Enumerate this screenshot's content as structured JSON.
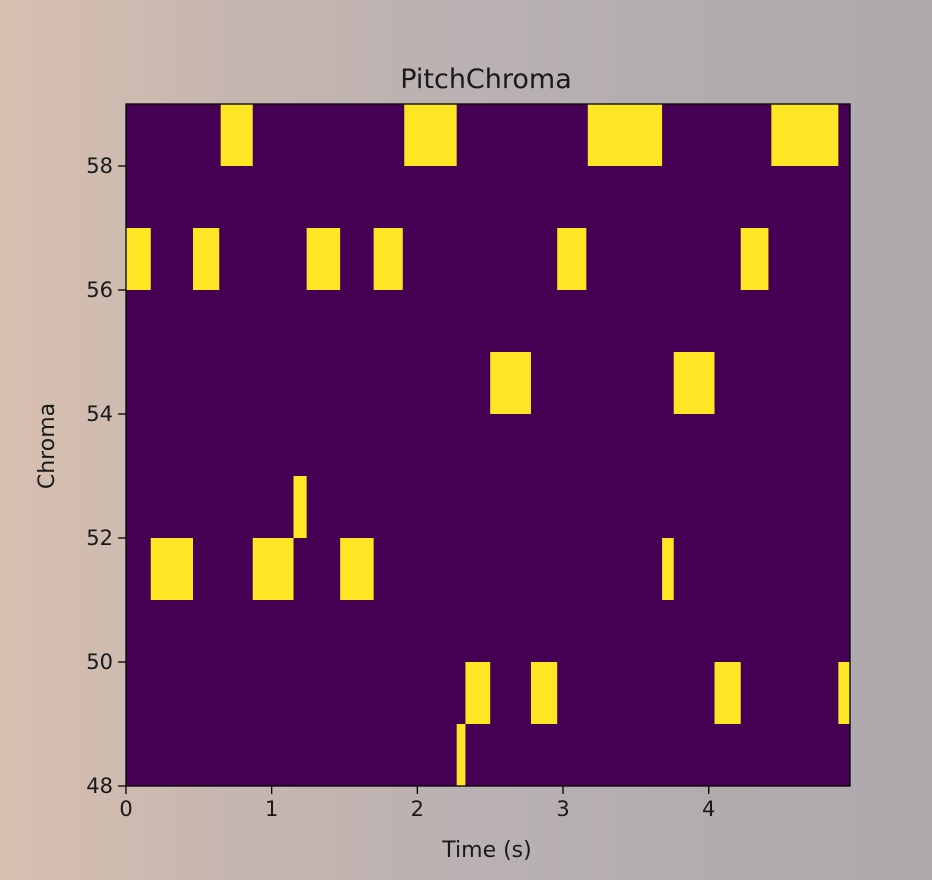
{
  "chart_data": {
    "type": "heatmap",
    "title": "PitchChroma",
    "xlabel": "Time (s)",
    "ylabel": "Chroma",
    "xlim": [
      0,
      4.97
    ],
    "ylim": [
      48,
      59
    ],
    "xticks": [
      0,
      1,
      2,
      3,
      4
    ],
    "yticks": [
      48,
      50,
      52,
      54,
      56,
      58
    ],
    "colors": {
      "background": "#440154",
      "active": "#fde725"
    },
    "active_cells": [
      {
        "row": 58,
        "t0": 0.65,
        "t1": 0.87
      },
      {
        "row": 58,
        "t0": 1.91,
        "t1": 2.27
      },
      {
        "row": 58,
        "t0": 3.17,
        "t1": 3.68
      },
      {
        "row": 58,
        "t0": 4.43,
        "t1": 4.89
      },
      {
        "row": 56,
        "t0": 0.0,
        "t1": 0.17
      },
      {
        "row": 56,
        "t0": 0.46,
        "t1": 0.64
      },
      {
        "row": 56,
        "t0": 1.24,
        "t1": 1.47
      },
      {
        "row": 56,
        "t0": 1.7,
        "t1": 1.9
      },
      {
        "row": 56,
        "t0": 2.96,
        "t1": 3.16
      },
      {
        "row": 56,
        "t0": 4.22,
        "t1": 4.41
      },
      {
        "row": 54,
        "t0": 2.5,
        "t1": 2.78
      },
      {
        "row": 54,
        "t0": 3.76,
        "t1": 4.04
      },
      {
        "row": 52,
        "t0": 1.15,
        "t1": 1.24
      },
      {
        "row": 51,
        "t0": 0.17,
        "t1": 0.46
      },
      {
        "row": 51,
        "t0": 0.87,
        "t1": 1.15
      },
      {
        "row": 51,
        "t0": 1.47,
        "t1": 1.7
      },
      {
        "row": 51,
        "t0": 3.68,
        "t1": 3.76
      },
      {
        "row": 49,
        "t0": 2.33,
        "t1": 2.5
      },
      {
        "row": 49,
        "t0": 2.78,
        "t1": 2.96
      },
      {
        "row": 49,
        "t0": 4.04,
        "t1": 4.22
      },
      {
        "row": 49,
        "t0": 4.89,
        "t1": 4.97
      },
      {
        "row": 48,
        "t0": 2.27,
        "t1": 2.33
      }
    ]
  }
}
